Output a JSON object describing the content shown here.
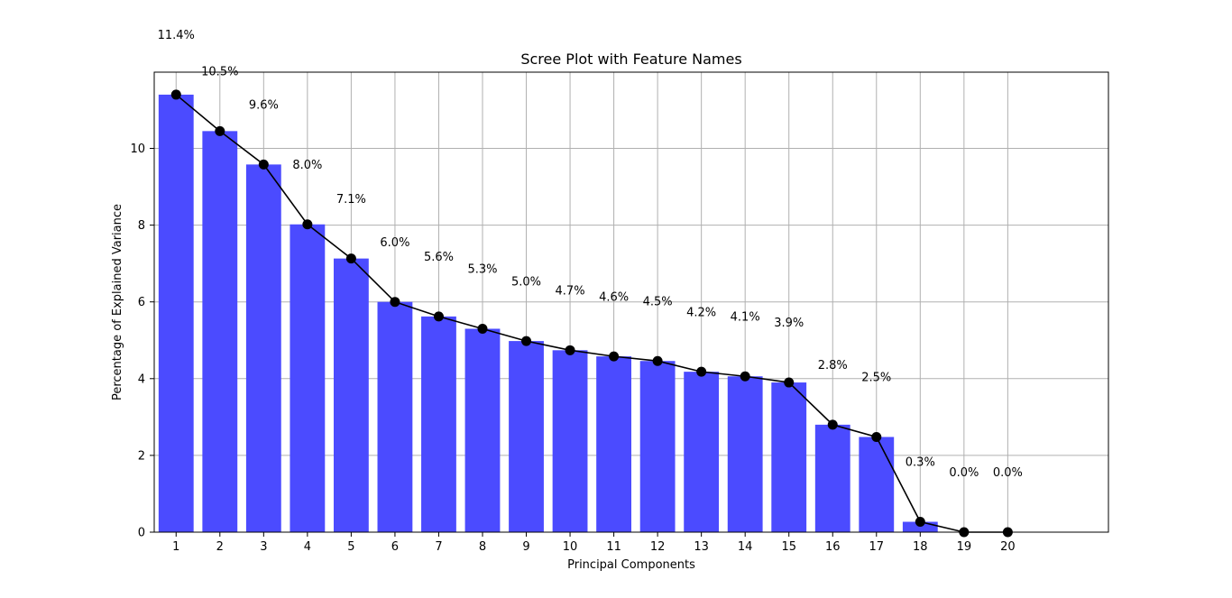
{
  "chart_data": {
    "type": "bar",
    "title": "Scree Plot with Feature Names",
    "xlabel": "Principal Components",
    "ylabel": "Percentage of Explained Variance",
    "categories": [
      "1",
      "2",
      "3",
      "4",
      "5",
      "6",
      "7",
      "8",
      "9",
      "10",
      "11",
      "12",
      "13",
      "14",
      "15",
      "16",
      "17",
      "18",
      "19",
      "20"
    ],
    "values": [
      11.4,
      10.45,
      9.58,
      8.02,
      7.13,
      6.0,
      5.62,
      5.3,
      4.98,
      4.74,
      4.58,
      4.46,
      4.18,
      4.06,
      3.9,
      2.8,
      2.48,
      0.27,
      0.0,
      0.0
    ],
    "value_labels": [
      "11.4%",
      "10.5%",
      "9.6%",
      "8.0%",
      "7.1%",
      "6.0%",
      "5.6%",
      "5.3%",
      "5.0%",
      "4.7%",
      "4.6%",
      "4.5%",
      "4.2%",
      "4.1%",
      "3.9%",
      "2.8%",
      "2.5%",
      "0.3%",
      "0.0%",
      "0.0%"
    ],
    "line_series": {
      "values": [
        11.4,
        10.45,
        9.58,
        8.02,
        7.13,
        6.0,
        5.62,
        5.3,
        4.98,
        4.74,
        4.58,
        4.46,
        4.18,
        4.06,
        3.9,
        2.8,
        2.48,
        0.27,
        0.0,
        0.0
      ],
      "marker": "circle",
      "color": "#000000"
    },
    "bar_color": "#4b4bff",
    "ylim": [
      0,
      12
    ],
    "xlim": [
      -0.5,
      21.3
    ],
    "yticks": [
      0,
      2,
      4,
      6,
      8,
      10
    ],
    "grid": true
  }
}
